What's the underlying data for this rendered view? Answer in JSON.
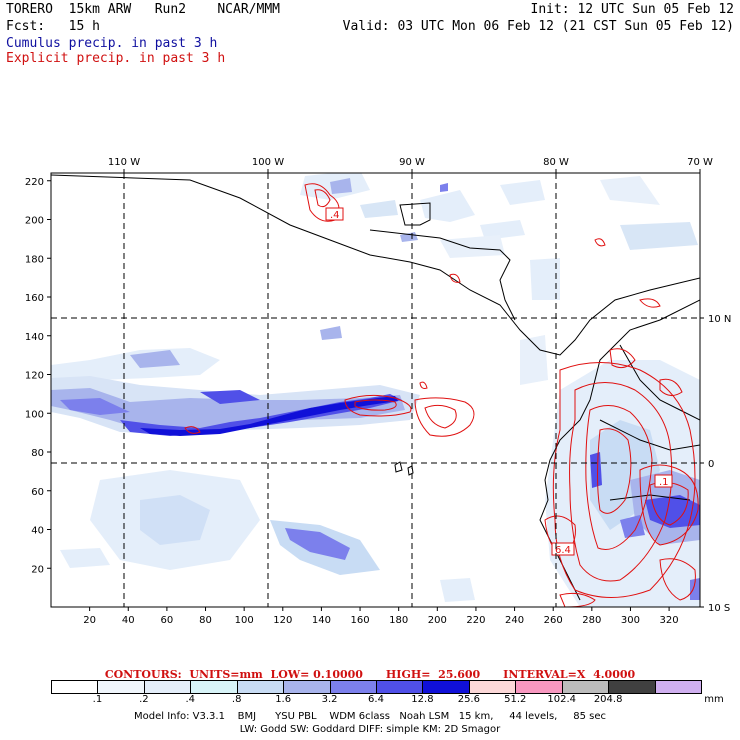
{
  "header": {
    "model": "TORERO",
    "resolution": "15km ARW",
    "run": "Run2",
    "center": "NCAR/MMM",
    "init": "Init: 12 UTC Sun 05 Feb 12",
    "fcst_label": "Fcst:",
    "fcst_value": "15 h",
    "valid": "Valid: 03 UTC Mon 06 Feb 12 (21 CST Sun 05 Feb 12)",
    "field1": "Cumulus precip. in past 3 h",
    "field2": "Explicit precip. in past 3 h"
  },
  "map": {
    "lon_labels": [
      "110 W",
      "100 W",
      "90 W",
      "80 W",
      "70 W"
    ],
    "lat_labels": [
      "10 N",
      "0",
      "10 S"
    ],
    "x_ticks": [
      "20",
      "40",
      "60",
      "80",
      "100",
      "120",
      "140",
      "160",
      "180",
      "200",
      "220",
      "240",
      "260",
      "280",
      "300",
      "320"
    ],
    "y_ticks": [
      "220",
      "200",
      "180",
      "160",
      "140",
      "120",
      "100",
      "80",
      "60",
      "40",
      "20"
    ],
    "contour_labels": [
      ".4",
      ".1",
      "6.4"
    ]
  },
  "contour_info": {
    "text": "CONTOURS:  UNITS=mm  LOW= 0.10000      HIGH=  25.600      INTERVAL=X  4.0000"
  },
  "colorbar": {
    "colors": [
      "#ffffff",
      "#f0f6fc",
      "#e4eefa",
      "#d8f4f8",
      "#c8dcf4",
      "#a8b4ec",
      "#7c80ec",
      "#5050e8",
      "#1010d8",
      "#fcd8d8",
      "#f898c0",
      "#bcbcbc",
      "#404040",
      "#d0b0f0"
    ],
    "labels": [
      ".1",
      ".2",
      ".4",
      ".8",
      "1.6",
      "3.2",
      "6.4",
      "12.8",
      "25.6",
      "51.2",
      "102.4",
      "204.8"
    ],
    "units": "mm"
  },
  "footer": {
    "line1": "Model Info: V3.3.1    BMJ      YSU PBL    WDM 6class   Noah LSM   15 km,     44 levels,     85 sec",
    "line2": "LW: Godd SW: Goddard DIFF: simple KM: 2D Smagor"
  }
}
